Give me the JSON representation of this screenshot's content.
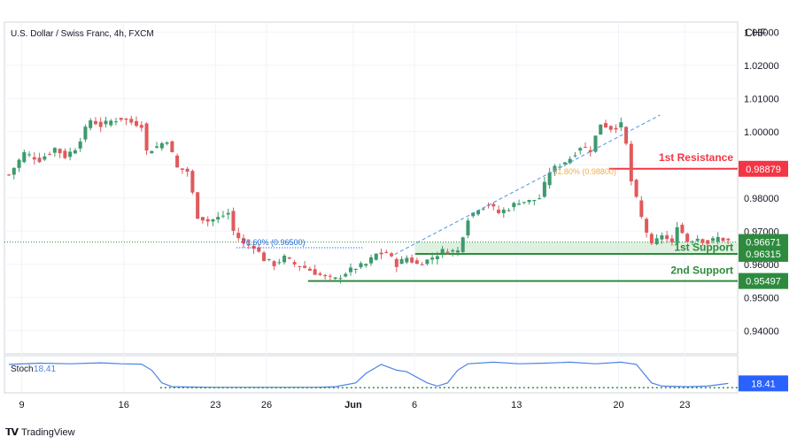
{
  "title": "U.S. Dollar / Swiss Franc, 4h, FXCM",
  "currency": "CHF",
  "brand": "TradingView",
  "colors": {
    "up": "#3d9a6d",
    "down": "#e05a5c",
    "resistance": "#f23645",
    "support": "#2e8b3e",
    "support_fill": "#c8e6c9",
    "fib_line": "#1e6ae0",
    "stoch_line": "#4b83e6",
    "stoch_label_bg": "#2962ff",
    "text_muted": "#787b86"
  },
  "chart_data": [
    {
      "type": "candlestick",
      "title": "U.S. Dollar / Swiss Franc, 4h, FXCM",
      "ylabel": "CHF",
      "ylim": [
        0.933,
        1.033
      ],
      "y_ticks": [
        "1.03000",
        "1.02000",
        "1.01000",
        "1.00000",
        "0.99000",
        "0.98000",
        "0.97000",
        "0.96000",
        "0.95000",
        "0.94000"
      ],
      "x_ticks": [
        "9",
        "16",
        "23",
        "26",
        "Jun",
        "6",
        "13",
        "20",
        "23"
      ],
      "grid": true,
      "close_path": [
        [
          0,
          0.987
        ],
        [
          3,
          0.9935
        ],
        [
          6,
          0.9915
        ],
        [
          9,
          0.995
        ],
        [
          11,
          0.9925
        ],
        [
          13,
          0.995
        ],
        [
          16,
          1.0035
        ],
        [
          18,
          1.0018
        ],
        [
          20,
          1.0032
        ],
        [
          22,
          1.004
        ],
        [
          24,
          1.0028
        ],
        [
          26,
          1.002
        ],
        [
          27,
          0.994
        ],
        [
          29,
          0.9955
        ],
        [
          31,
          0.9975
        ],
        [
          33,
          0.989
        ],
        [
          35,
          0.988
        ],
        [
          37,
          0.9745
        ],
        [
          39,
          0.973
        ],
        [
          41,
          0.974
        ],
        [
          43,
          0.9755
        ],
        [
          44,
          0.97
        ],
        [
          46,
          0.966
        ],
        [
          48,
          0.9655
        ],
        [
          50,
          0.9615
        ],
        [
          52,
          0.96
        ],
        [
          54,
          0.962
        ],
        [
          56,
          0.96
        ],
        [
          58,
          0.959
        ],
        [
          60,
          0.9575
        ],
        [
          62,
          0.956
        ],
        [
          64,
          0.9555
        ],
        [
          66,
          0.9575
        ],
        [
          68,
          0.959
        ],
        [
          70,
          0.96
        ],
        [
          72,
          0.963
        ],
        [
          74,
          0.9635
        ],
        [
          76,
          0.96
        ],
        [
          78,
          0.962
        ],
        [
          80,
          0.96
        ],
        [
          82,
          0.9612
        ],
        [
          85,
          0.964
        ],
        [
          88,
          0.964
        ],
        [
          90,
          0.974
        ],
        [
          92,
          0.977
        ],
        [
          94,
          0.978
        ],
        [
          96,
          0.9755
        ],
        [
          98,
          0.977
        ],
        [
          100,
          0.979
        ],
        [
          102,
          0.979
        ],
        [
          104,
          0.98
        ],
        [
          106,
          0.988
        ],
        [
          108,
          0.99
        ],
        [
          110,
          0.992
        ],
        [
          112,
          0.9955
        ],
        [
          114,
          0.9945
        ],
        [
          116,
          1.0025
        ],
        [
          118,
          1.001
        ],
        [
          120,
          1.002
        ],
        [
          121,
          0.996
        ],
        [
          122,
          0.985
        ],
        [
          124,
          0.974
        ],
        [
          126,
          0.9655
        ],
        [
          128,
          0.969
        ],
        [
          130,
          0.966
        ],
        [
          131,
          0.972
        ],
        [
          133,
          0.967
        ],
        [
          135,
          0.968
        ],
        [
          137,
          0.9665
        ],
        [
          139,
          0.968
        ],
        [
          141,
          0.967
        ]
      ],
      "levels": [
        {
          "name": "1st Resistance",
          "value": 0.98879,
          "label": "0.98879"
        },
        {
          "name": "1st Support",
          "value": 0.96315,
          "label": "0.96315",
          "zone_top": 0.96671,
          "zone_top_label": "0.96671"
        },
        {
          "name": "2nd Support",
          "value": 0.95497,
          "label": "0.95497"
        }
      ],
      "annotations": [
        {
          "text": "78.60% (0.96500)",
          "value": 0.965
        },
        {
          "text": "61.80% (0.98800)",
          "value": 0.988
        }
      ],
      "level_labels": {
        "resistance1": "1st Resistance",
        "support1": "1st Support",
        "support2": "2nd Support"
      },
      "trendline": [
        [
          76,
          0.963
        ],
        [
          128,
          1.005
        ]
      ]
    },
    {
      "type": "line",
      "title": "Stoch",
      "series": [
        {
          "name": "Stoch",
          "last_value": "18.41"
        }
      ],
      "last_value": "18.41",
      "ylim": [
        0,
        100
      ],
      "points": [
        [
          0,
          78
        ],
        [
          6,
          82
        ],
        [
          12,
          80
        ],
        [
          18,
          83
        ],
        [
          22,
          80
        ],
        [
          26,
          79
        ],
        [
          28,
          60
        ],
        [
          30,
          20
        ],
        [
          32,
          8
        ],
        [
          40,
          6
        ],
        [
          60,
          6
        ],
        [
          64,
          8
        ],
        [
          68,
          20
        ],
        [
          70,
          50
        ],
        [
          73,
          78
        ],
        [
          76,
          60
        ],
        [
          78,
          55
        ],
        [
          82,
          20
        ],
        [
          84,
          10
        ],
        [
          86,
          20
        ],
        [
          88,
          60
        ],
        [
          90,
          80
        ],
        [
          95,
          85
        ],
        [
          100,
          80
        ],
        [
          105,
          82
        ],
        [
          110,
          85
        ],
        [
          115,
          80
        ],
        [
          120,
          85
        ],
        [
          123,
          78
        ],
        [
          126,
          20
        ],
        [
          128,
          10
        ],
        [
          133,
          8
        ],
        [
          137,
          10
        ],
        [
          141,
          18.41
        ]
      ],
      "oversold_level": 5
    }
  ]
}
